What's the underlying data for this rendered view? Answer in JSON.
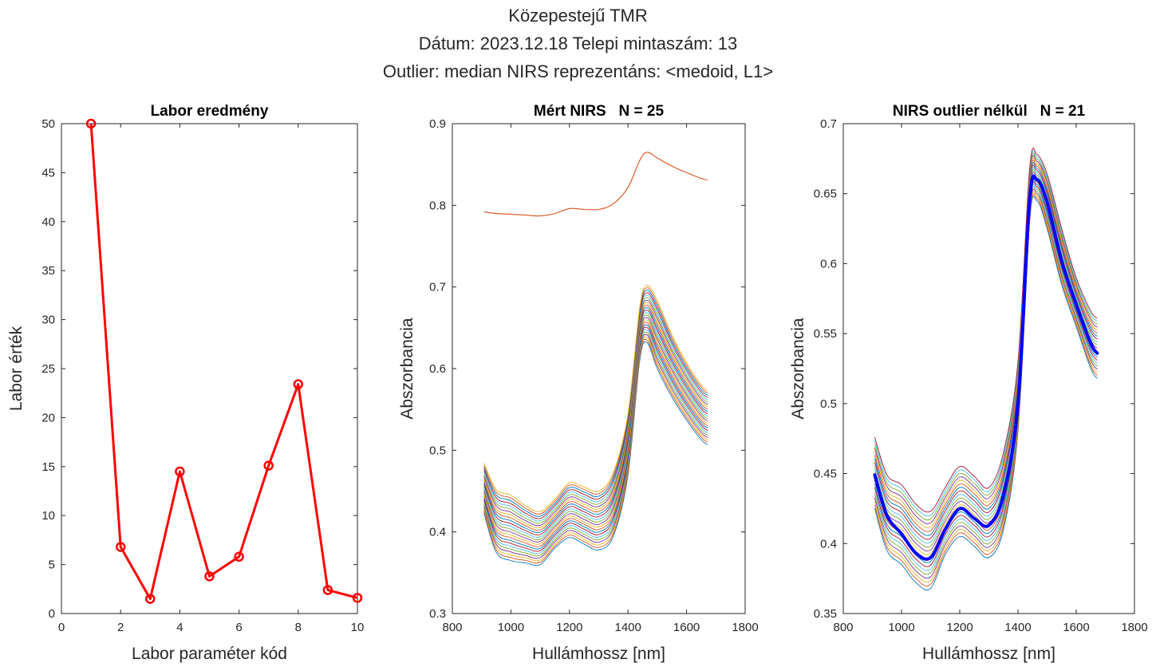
{
  "figure": {
    "suptitle": [
      "Közepestejű TMR",
      "Dátum: 2023.12.18   Telepi mintaszám: 13",
      "Outlier: median   NIRS reprezentáns: <medoid, L1>"
    ]
  },
  "chart_data": [
    {
      "type": "line",
      "title": "Labor eredmény",
      "xlabel": "Labor paraméter kód",
      "ylabel": "Labor érték",
      "xlim": [
        0,
        10
      ],
      "ylim": [
        0,
        50
      ],
      "xticks": [
        0,
        2,
        4,
        6,
        8,
        10
      ],
      "yticks": [
        0,
        5,
        10,
        15,
        20,
        25,
        30,
        35,
        40,
        45,
        50
      ],
      "grid": false,
      "marker": "circle",
      "series": [
        {
          "color": "#ff0000",
          "x": [
            1,
            2,
            3,
            4,
            5,
            6,
            7,
            8,
            9,
            10
          ],
          "y": [
            50,
            6.8,
            1.5,
            14.5,
            3.8,
            5.8,
            15.1,
            23.4,
            2.4,
            1.6
          ]
        }
      ]
    },
    {
      "type": "line",
      "title": "Mért NIRS   N = 25",
      "xlabel": "Hullámhossz [nm]",
      "ylabel": "Abszorbancia",
      "xlim": [
        800,
        1800
      ],
      "ylim": [
        0.3,
        0.9
      ],
      "xticks": [
        800,
        1000,
        1200,
        1400,
        1600,
        1800
      ],
      "yticks": [
        0.3,
        0.4,
        0.5,
        0.6,
        0.7,
        0.8,
        0.9
      ],
      "grid": false,
      "n_spectra": 25,
      "wavelengths": [
        908,
        950,
        1000,
        1050,
        1100,
        1150,
        1200,
        1250,
        1300,
        1350,
        1400,
        1440,
        1465,
        1500,
        1550,
        1600,
        1650,
        1672
      ],
      "outlier_spectrum": {
        "color": "#d95319",
        "y": [
          0.792,
          0.79,
          0.789,
          0.788,
          0.787,
          0.79,
          0.796,
          0.795,
          0.795,
          0.802,
          0.822,
          0.855,
          0.865,
          0.858,
          0.848,
          0.84,
          0.833,
          0.831
        ]
      },
      "spectra_range": {
        "low": [
          0.423,
          0.375,
          0.365,
          0.362,
          0.36,
          0.38,
          0.393,
          0.385,
          0.378,
          0.395,
          0.47,
          0.61,
          0.632,
          0.6,
          0.565,
          0.537,
          0.513,
          0.507
        ],
        "high": [
          0.484,
          0.452,
          0.445,
          0.432,
          0.425,
          0.44,
          0.46,
          0.455,
          0.45,
          0.473,
          0.545,
          0.675,
          0.702,
          0.683,
          0.641,
          0.607,
          0.58,
          0.573
        ]
      }
    },
    {
      "type": "line",
      "title": "NIRS outlier nélkül   N = 21",
      "xlabel": "Hullámhossz [nm]",
      "ylabel": "Abszorbancia",
      "xlim": [
        800,
        1800
      ],
      "ylim": [
        0.35,
        0.7
      ],
      "xticks": [
        800,
        1000,
        1200,
        1400,
        1600,
        1800
      ],
      "yticks": [
        0.35,
        0.4,
        0.45,
        0.5,
        0.55,
        0.6,
        0.65,
        0.7
      ],
      "grid": false,
      "n_spectra": 21,
      "wavelengths": [
        908,
        950,
        1000,
        1050,
        1100,
        1150,
        1200,
        1250,
        1300,
        1350,
        1400,
        1440,
        1465,
        1500,
        1550,
        1600,
        1650,
        1672
      ],
      "spectra_range": {
        "low": [
          0.425,
          0.395,
          0.385,
          0.372,
          0.368,
          0.392,
          0.405,
          0.398,
          0.39,
          0.41,
          0.48,
          0.63,
          0.645,
          0.625,
          0.585,
          0.555,
          0.525,
          0.518
        ],
        "high": [
          0.476,
          0.449,
          0.442,
          0.428,
          0.423,
          0.44,
          0.455,
          0.448,
          0.44,
          0.465,
          0.53,
          0.668,
          0.678,
          0.664,
          0.625,
          0.59,
          0.566,
          0.561
        ]
      },
      "medoid_spectrum": {
        "color": "#0000ff",
        "y": [
          0.449,
          0.42,
          0.407,
          0.393,
          0.39,
          0.41,
          0.425,
          0.418,
          0.413,
          0.435,
          0.5,
          0.645,
          0.66,
          0.644,
          0.602,
          0.571,
          0.543,
          0.536
        ]
      }
    }
  ],
  "palette": [
    "#0072bd",
    "#d95319",
    "#edb120",
    "#7e2f8e",
    "#77ac30",
    "#4dbeee",
    "#a2142f"
  ]
}
